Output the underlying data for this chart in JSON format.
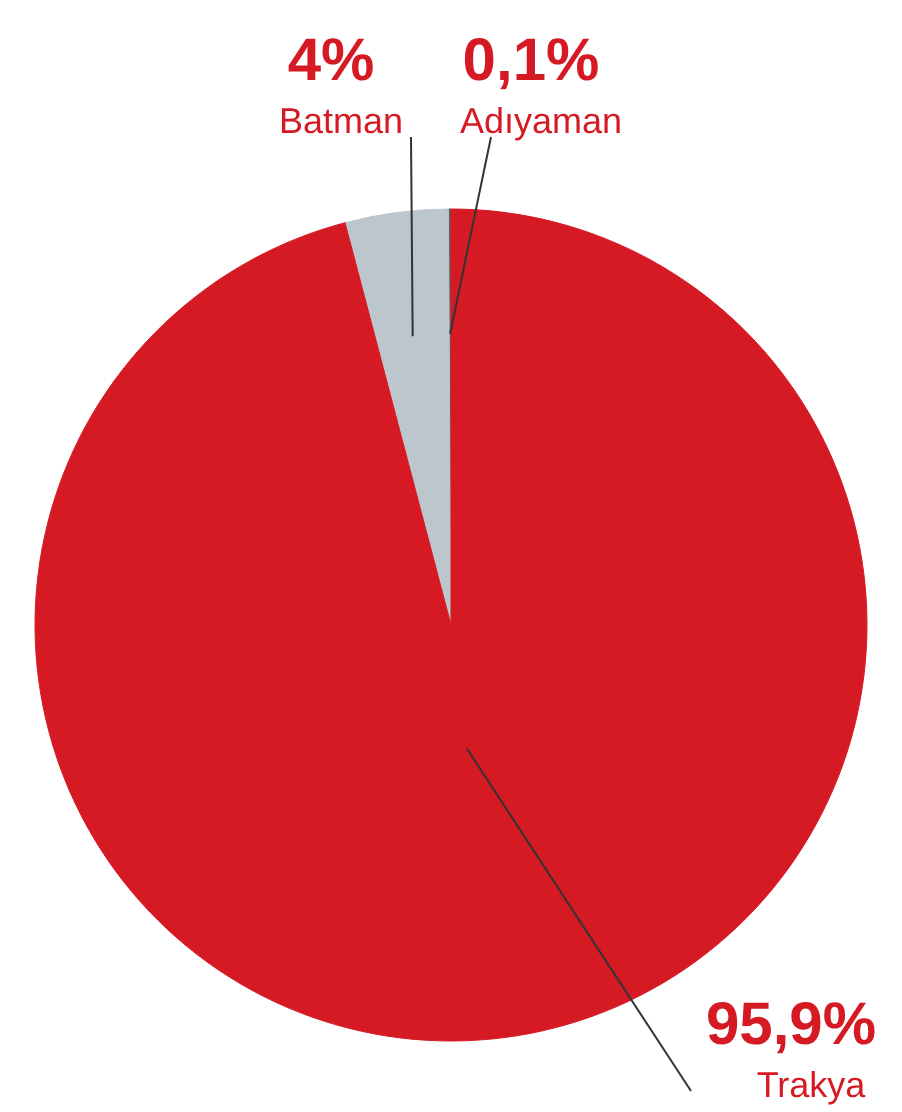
{
  "chart_data": {
    "type": "pie",
    "categories": [
      "Adıyaman",
      "Batman",
      "Trakya"
    ],
    "values": [
      0.1,
      4,
      95.9
    ],
    "colors": [
      "#5a5f63",
      "#bcc6cd",
      "#d61a24"
    ],
    "value_labels": [
      "0,1%",
      "4%",
      "95,9%"
    ]
  }
}
